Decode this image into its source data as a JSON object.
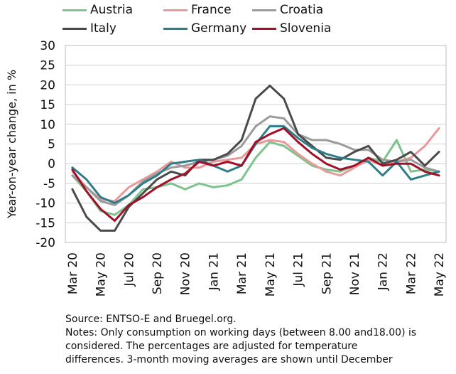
{
  "chart_data": {
    "type": "line",
    "title": "",
    "ylabel": "Year-on-year change, in %",
    "xlabel": "",
    "ylim": [
      -20,
      30
    ],
    "yticks": [
      30,
      25,
      20,
      15,
      10,
      5,
      0,
      -5,
      -10,
      -15,
      -20
    ],
    "grid": "horizontal",
    "legend_position": "top",
    "x": [
      "Mar 20",
      "Apr 20",
      "May 20",
      "Jun 20",
      "Jul 20",
      "Aug 20",
      "Sep 20",
      "Oct 20",
      "Nov 20",
      "Dec 20",
      "Jan 21",
      "Feb 21",
      "Mar 21",
      "Apr 21",
      "May 21",
      "Jun 21",
      "Jul 21",
      "Aug 21",
      "Sep 21",
      "Oct 21",
      "Nov 21",
      "Dec 21",
      "Jan 22",
      "Feb 22",
      "Mar 22",
      "Apr 22",
      "May 22"
    ],
    "xtick_labels": [
      "Mar 20",
      "May 20",
      "Jul 20",
      "Sep 20",
      "Nov 20",
      "Jan 21",
      "Mar 21",
      "May 21",
      "Jul 21",
      "Sep 21",
      "Nov 21",
      "Jan 22",
      "Mar 22",
      "May 22"
    ],
    "series": [
      {
        "name": "Austria",
        "color": "#7dc38e",
        "values": [
          -3,
          -7,
          -12,
          -13,
          -10.5,
          -6.5,
          -6,
          -5,
          -6.5,
          -5,
          -6,
          -5.5,
          -4,
          1.5,
          5.5,
          4.5,
          2,
          -0.5,
          -1.5,
          -2,
          -0.5,
          1.5,
          0.5,
          6,
          -2,
          -1.5,
          -2
        ]
      },
      {
        "name": "France",
        "color": "#e89a9a",
        "values": [
          -2,
          -6,
          -9,
          -9.5,
          -6,
          -4,
          -2,
          0.5,
          -1,
          -1,
          0.5,
          1,
          1.5,
          5,
          6,
          5.5,
          2.5,
          0,
          -2,
          -3,
          -1,
          1,
          -0.5,
          0.5,
          1.5,
          4.5,
          9
        ]
      },
      {
        "name": "Croatia",
        "color": "#9b9b9b",
        "values": [
          -3,
          -6,
          -9.5,
          -10.5,
          -8,
          -4.5,
          -2.5,
          -1,
          -0.5,
          0.5,
          1,
          2,
          4.5,
          9.5,
          12,
          11.5,
          7.5,
          6,
          6,
          5,
          3.5,
          3.5,
          1,
          0.5,
          1,
          -1,
          -2
        ]
      },
      {
        "name": "Italy",
        "color": "#4a4a4a",
        "values": [
          -6.5,
          -13.5,
          -17,
          -17,
          -11,
          -7.5,
          -4,
          -2,
          -3,
          1,
          1,
          2.5,
          6,
          16.5,
          19.8,
          16.5,
          7.5,
          4.5,
          1.5,
          1,
          3,
          4.5,
          0,
          1,
          3,
          -0.5,
          3
        ]
      },
      {
        "name": "Germany",
        "color": "#2e7d88",
        "values": [
          -1,
          -4,
          -8.5,
          -10,
          -8,
          -5,
          -3,
          0,
          0.5,
          1,
          -0.5,
          -2,
          -0.5,
          5,
          9.5,
          9.5,
          6.5,
          4,
          2.5,
          1.5,
          1,
          0.5,
          -3,
          0.5,
          -4,
          -3,
          -2
        ]
      },
      {
        "name": "Slovenia",
        "color": "#a01028",
        "values": [
          -1.5,
          -7,
          -11.5,
          -14.5,
          -10.5,
          -8.5,
          -6,
          -4,
          -2.5,
          0.5,
          -0.5,
          0.5,
          -0.5,
          5.5,
          7.5,
          9,
          5.5,
          2.5,
          0,
          -1.5,
          -0.5,
          1.5,
          -0.5,
          0,
          0,
          -2,
          -3
        ]
      }
    ]
  },
  "notes": {
    "line1": "Source: ENTSO-E and Bruegel.org.",
    "line2": "Notes: Only consumption on working days (between 8.00 and18.00) is",
    "line3": "considered. The percentages are adjusted for temperature",
    "line4": "differences. 3-month moving averages are shown until December"
  }
}
